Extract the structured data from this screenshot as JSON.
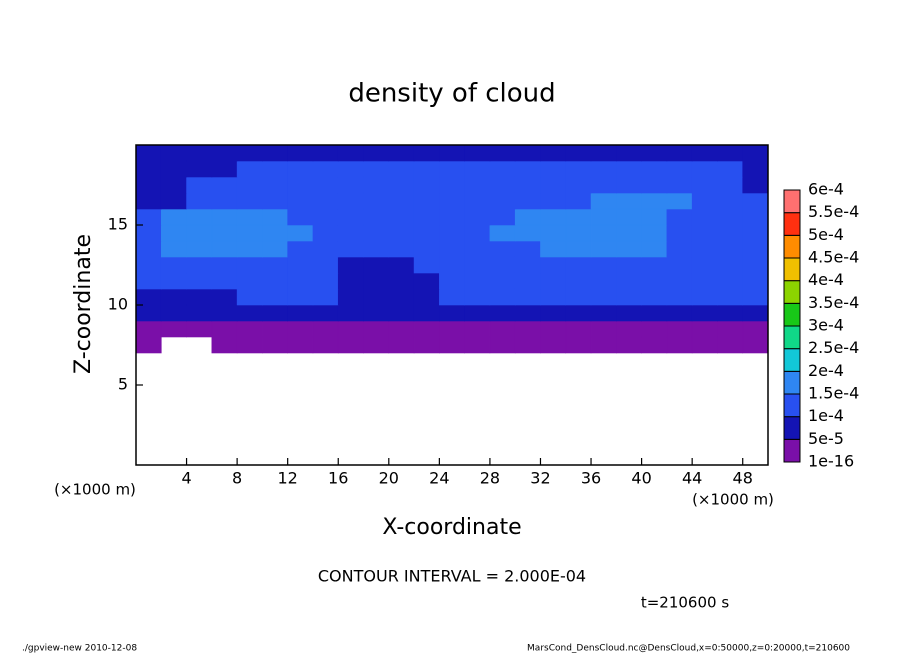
{
  "chart_data": {
    "type": "heatmap",
    "title": "density of cloud",
    "xlabel": "X-coordinate",
    "ylabel": "Z-coordinate",
    "xunit": "(×1000 m)",
    "yunit": "(×1000 m)",
    "contour_note": "CONTOUR INTERVAL = 2.000E-04",
    "time_note": "t=210600 s",
    "footer_left": "./gpview-new  2010-12-08",
    "footer_right": "MarsCond_DensCloud.nc@DensCloud,x=0:50000,z=0:20000,t=210600",
    "xlim": [
      0,
      50
    ],
    "ylim": [
      0,
      20
    ],
    "xticks": [
      4,
      8,
      12,
      16,
      20,
      24,
      28,
      32,
      36,
      40,
      44,
      48
    ],
    "yticks": [
      5,
      10,
      15
    ],
    "x": [
      1,
      3,
      5,
      7,
      9,
      11,
      13,
      15,
      17,
      19,
      21,
      23,
      25,
      27,
      29,
      31,
      33,
      35,
      37,
      39,
      41,
      43,
      45,
      47,
      49
    ],
    "y": [
      7.5,
      8.5,
      9.5,
      10.5,
      11.5,
      12.5,
      13.5,
      14.5,
      15.5,
      16.5,
      17.5,
      18.5,
      19.5
    ],
    "values": [
      [
        3e-05,
        null,
        null,
        3e-05,
        3e-05,
        3e-05,
        3e-05,
        3e-05,
        3e-05,
        3e-05,
        3e-05,
        3e-05,
        3e-05,
        3e-05,
        3e-05,
        3e-05,
        3e-05,
        3e-05,
        3e-05,
        3e-05,
        3e-05,
        3e-05,
        3e-05,
        3e-05,
        3e-05
      ],
      [
        3e-05,
        3e-05,
        3e-05,
        3e-05,
        3e-05,
        3e-05,
        3e-05,
        3e-05,
        3e-05,
        3e-05,
        3e-05,
        3e-05,
        3e-05,
        3e-05,
        3e-05,
        3e-05,
        3e-05,
        3e-05,
        3e-05,
        3e-05,
        3e-05,
        3e-05,
        3e-05,
        3e-05,
        3e-05
      ],
      [
        7e-05,
        7e-05,
        7e-05,
        7e-05,
        7e-05,
        7e-05,
        7e-05,
        7e-05,
        7e-05,
        7e-05,
        7e-05,
        7e-05,
        7e-05,
        7e-05,
        7e-05,
        7e-05,
        7e-05,
        7e-05,
        7e-05,
        7e-05,
        7e-05,
        7e-05,
        7e-05,
        7e-05,
        7e-05
      ],
      [
        7e-05,
        7e-05,
        7e-05,
        7e-05,
        0.00012,
        0.00012,
        0.00012,
        0.00012,
        7e-05,
        7e-05,
        7e-05,
        7e-05,
        0.00012,
        0.00012,
        0.00012,
        0.00012,
        0.00012,
        0.00012,
        0.00012,
        0.00012,
        0.00012,
        0.00012,
        0.00012,
        0.00012,
        0.00012
      ],
      [
        0.00012,
        0.00012,
        0.00012,
        0.00012,
        0.00012,
        0.00012,
        0.00012,
        0.00012,
        7e-05,
        7e-05,
        7e-05,
        7e-05,
        0.00012,
        0.00012,
        0.00012,
        0.00012,
        0.00012,
        0.00012,
        0.00012,
        0.00012,
        0.00012,
        0.00012,
        0.00012,
        0.00012,
        0.00012
      ],
      [
        0.00012,
        0.00012,
        0.00012,
        0.00012,
        0.00012,
        0.00012,
        0.00012,
        0.00012,
        7e-05,
        7e-05,
        7e-05,
        0.00012,
        0.00012,
        0.00012,
        0.00012,
        0.00012,
        0.00012,
        0.00012,
        0.00012,
        0.00012,
        0.00012,
        0.00012,
        0.00012,
        0.00012,
        0.00012
      ],
      [
        0.00012,
        0.00017,
        0.00017,
        0.00017,
        0.00017,
        0.00017,
        0.00012,
        0.00012,
        0.00012,
        0.00012,
        0.00012,
        0.00012,
        0.00012,
        0.00012,
        0.00012,
        0.00012,
        0.00017,
        0.00017,
        0.00017,
        0.00017,
        0.00017,
        0.00012,
        0.00012,
        0.00012,
        0.00012
      ],
      [
        0.00012,
        0.00017,
        0.00017,
        0.00017,
        0.00017,
        0.00017,
        0.00017,
        0.00012,
        0.00012,
        0.00012,
        0.00012,
        0.00012,
        0.00012,
        0.00012,
        0.00017,
        0.00017,
        0.00017,
        0.00017,
        0.00017,
        0.00017,
        0.00017,
        0.00012,
        0.00012,
        0.00012,
        0.00012
      ],
      [
        0.00012,
        0.00017,
        0.00017,
        0.00017,
        0.00017,
        0.00017,
        0.00012,
        0.00012,
        0.00012,
        0.00012,
        0.00012,
        0.00012,
        0.00012,
        0.00012,
        0.00012,
        0.00017,
        0.00017,
        0.00017,
        0.00017,
        0.00017,
        0.00017,
        0.00012,
        0.00012,
        0.00012,
        0.00012
      ],
      [
        7e-05,
        7e-05,
        0.00012,
        0.00012,
        0.00012,
        0.00012,
        0.00012,
        0.00012,
        0.00012,
        0.00012,
        0.00012,
        0.00012,
        0.00012,
        0.00012,
        0.00012,
        0.00012,
        0.00012,
        0.00012,
        0.00017,
        0.00017,
        0.00017,
        0.00017,
        0.00012,
        0.00012,
        0.00012
      ],
      [
        7e-05,
        7e-05,
        0.00012,
        0.00012,
        0.00012,
        0.00012,
        0.00012,
        0.00012,
        0.00012,
        0.00012,
        0.00012,
        0.00012,
        0.00012,
        0.00012,
        0.00012,
        0.00012,
        0.00012,
        0.00012,
        0.00012,
        0.00012,
        0.00012,
        0.00012,
        0.00012,
        0.00012,
        7e-05
      ],
      [
        7e-05,
        7e-05,
        7e-05,
        7e-05,
        0.00012,
        0.00012,
        0.00012,
        0.00012,
        0.00012,
        0.00012,
        0.00012,
        0.00012,
        0.00012,
        0.00012,
        0.00012,
        0.00012,
        0.00012,
        0.00012,
        0.00012,
        0.00012,
        0.00012,
        0.00012,
        0.00012,
        0.00012,
        7e-05
      ],
      [
        7e-05,
        7e-05,
        7e-05,
        7e-05,
        7e-05,
        7e-05,
        7e-05,
        7e-05,
        7e-05,
        7e-05,
        7e-05,
        7e-05,
        7e-05,
        7e-05,
        7e-05,
        7e-05,
        7e-05,
        7e-05,
        7e-05,
        7e-05,
        7e-05,
        7e-05,
        7e-05,
        7e-05,
        7e-05
      ]
    ],
    "colorbar": {
      "levels": [
        1e-16,
        {
          "value": 5e-05,
          "label": "5e-5"
        },
        {
          "value": 0.0001,
          "label": "1e-4"
        },
        {
          "value": 0.00015,
          "label": "1.5e-4"
        },
        {
          "value": 0.0002,
          "label": "2e-4"
        },
        {
          "value": 0.00025,
          "label": "2.5e-4"
        },
        {
          "value": 0.0003,
          "label": "3e-4"
        },
        {
          "value": 0.00035,
          "label": "3.5e-4"
        },
        {
          "value": 0.0004,
          "label": "4e-4"
        },
        {
          "value": 0.00045,
          "label": "4.5e-4"
        },
        {
          "value": 0.0005,
          "label": "5e-4"
        },
        {
          "value": 0.00055,
          "label": "5.5e-4"
        },
        {
          "value": 0.0006,
          "label": "6e-4"
        }
      ],
      "colors": [
        "#7a0fa8",
        "#1414b4",
        "#2850f0",
        "#2f86f2",
        "#12c8d8",
        "#10d888",
        "#18c818",
        "#8cd400",
        "#f0c000",
        "#ff8c00",
        "#ff3010",
        "#ff7070"
      ]
    }
  }
}
